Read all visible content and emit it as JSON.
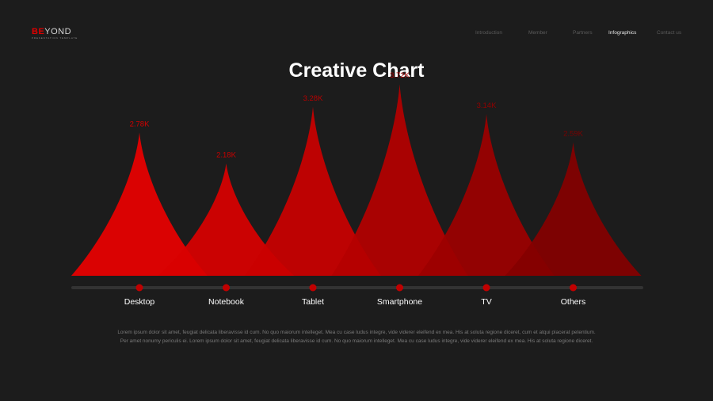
{
  "logo": {
    "highlight": "BE",
    "rest": "YOND",
    "tagline": "PRESENTATION TEMPLATE"
  },
  "nav": {
    "items": [
      {
        "label": "Introduction",
        "active": false
      },
      {
        "label": "Member",
        "active": false
      },
      {
        "label": "Partners",
        "active": false
      },
      {
        "label": "Infographics",
        "active": true
      },
      {
        "label": "Contact us",
        "active": false
      }
    ]
  },
  "title": "Creative Chart",
  "chart_data": {
    "type": "area",
    "categories": [
      "Desktop",
      "Notebook",
      "Tablet",
      "Smartphone",
      "TV",
      "Others"
    ],
    "values": [
      2.78,
      2.18,
      3.28,
      3.72,
      3.14,
      2.59
    ],
    "value_labels": [
      "2.78K",
      "2.18K",
      "3.28K",
      "3.72K",
      "3.14K",
      "2.59K"
    ],
    "unit": "K",
    "ylim": [
      0,
      4
    ],
    "colors": [
      "#e80000",
      "#d80000",
      "#c90000",
      "#b40000",
      "#9c0000",
      "#840000"
    ],
    "label_colors": [
      "#d40000",
      "#c60000",
      "#b80000",
      "#a80000",
      "#920000",
      "#7c0000"
    ],
    "track_color": "#333333",
    "dot_color": "#c10000",
    "grid": false,
    "legend": "none"
  },
  "body": {
    "paragraph": "Lorem ipsum dolor sit amet, feugiat delicata liberavisse id cum. No quo maiorum intelleget. Mea cu case ludus integre, vide viderer eleifend ex mea. His at soluta regione diceret, cum et atqui placerat petentium. Per amet nonumy periculis ei. Lorem ipsum dolor sit amet, feugiat delicata liberavisse id cum. No quo maiorum intelleget. Mea cu case ludus integre, vide viderer eleifend ex mea. His at soluta regione diceret."
  }
}
